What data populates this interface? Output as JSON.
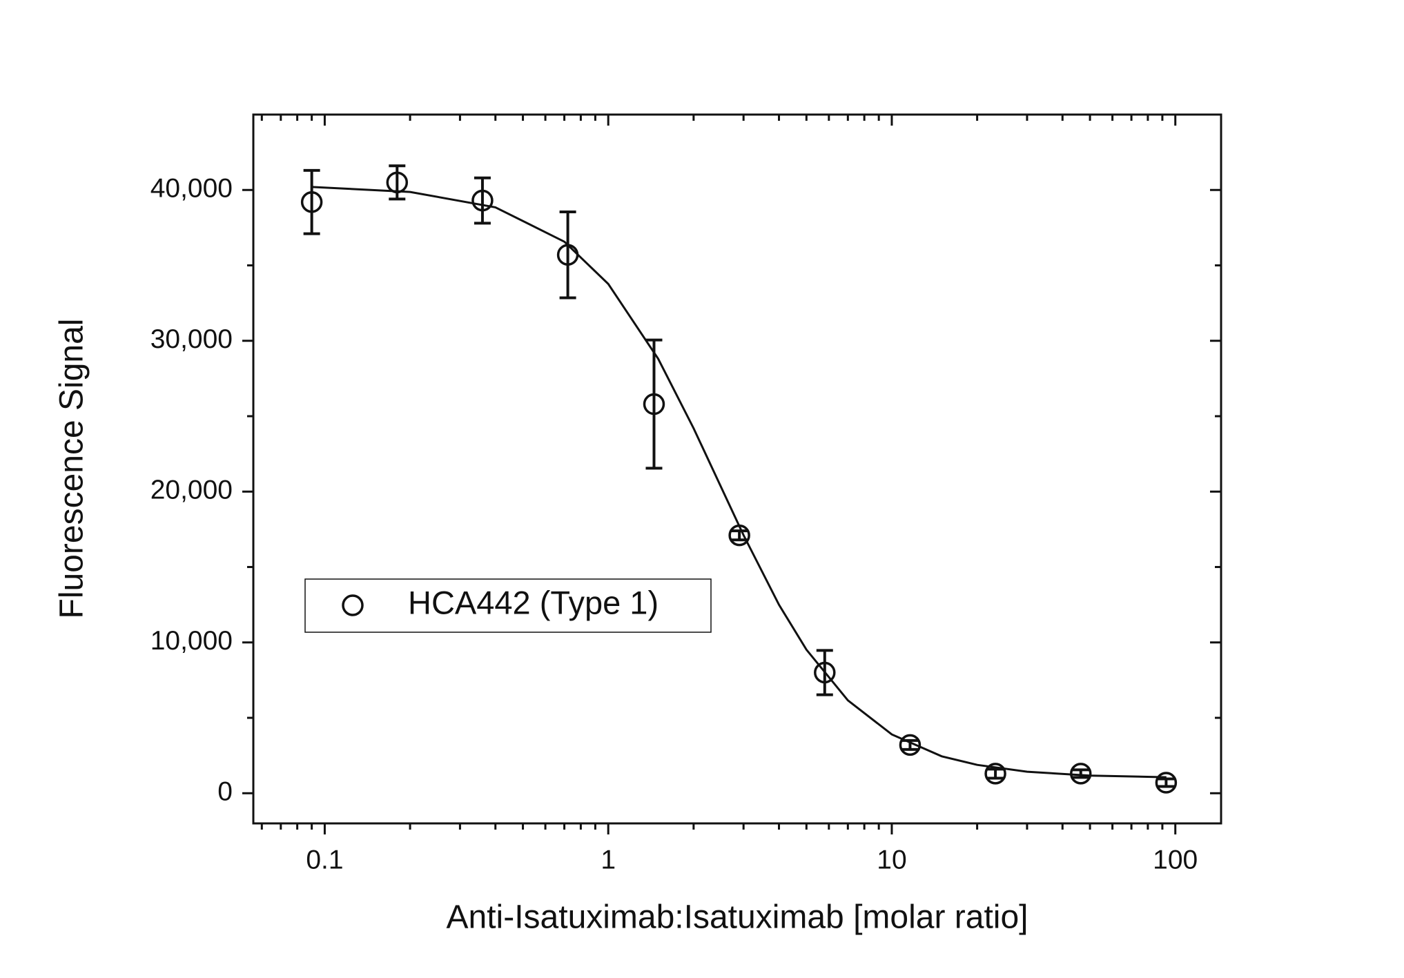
{
  "chart_data": {
    "type": "scatter",
    "x_label": "Anti-Isatuximab:Isatuximab [molar ratio]",
    "y_label": "Fluorescence Signal",
    "x_scale": "log",
    "xlim": [
      0.056,
      145
    ],
    "ylim": [
      -2000,
      45000
    ],
    "xticks": [
      0.1,
      1,
      10,
      100
    ],
    "xminorticks": [
      0.06,
      0.07,
      0.08,
      0.09,
      0.2,
      0.3,
      0.4,
      0.5,
      0.6,
      0.7,
      0.8,
      0.9,
      2,
      3,
      4,
      5,
      6,
      7,
      8,
      9,
      20,
      30,
      40,
      50,
      60,
      70,
      80,
      90
    ],
    "yticks": [
      0,
      {
        "value": 10000,
        "label": "10,000"
      },
      {
        "value": 20000,
        "label": "20,000"
      },
      {
        "value": 30000,
        "label": "30,000"
      },
      {
        "value": 40000,
        "label": "40,000"
      }
    ],
    "yminorticks": [
      5000,
      15000,
      25000,
      35000
    ],
    "legend": "lower left",
    "series": [
      {
        "name": "HCA442 (Type 1)",
        "color": "#111111",
        "marker": "open-circle",
        "x": [
          0.09,
          0.18,
          0.36,
          0.72,
          1.45,
          2.9,
          5.8,
          11.6,
          23.2,
          46.4,
          92.8
        ],
        "values": [
          39200,
          40500,
          39300,
          35700,
          25800,
          17100,
          8000,
          3200,
          1300,
          1300,
          700
        ],
        "errors": [
          2100,
          1100,
          1500,
          2850,
          4250,
          300,
          1470,
          300,
          300,
          250,
          250
        ]
      }
    ],
    "fit": {
      "color": "#111111",
      "x": [
        0.09,
        0.2,
        0.4,
        0.7,
        1,
        1.5,
        2,
        2.5,
        3,
        4,
        5,
        7,
        10,
        15,
        20,
        30,
        50,
        93
      ],
      "values": [
        40200,
        39870,
        38850,
        36570,
        33770,
        28810,
        24200,
        20290,
        17110,
        12500,
        9520,
        6160,
        3900,
        2450,
        1880,
        1430,
        1170,
        1060
      ]
    }
  }
}
